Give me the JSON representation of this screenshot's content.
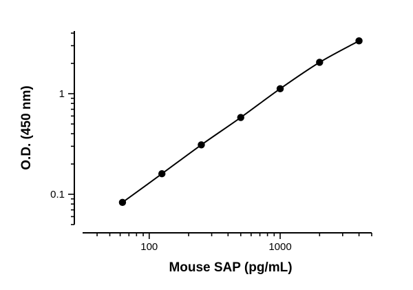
{
  "chart_data": {
    "type": "scatter",
    "xlabel": "Mouse SAP (pg/mL)",
    "ylabel": "O.D. (450 nm)",
    "x_scale": "log",
    "y_scale": "log",
    "xlim": [
      31,
      5000
    ],
    "ylim": [
      0.05,
      4.2
    ],
    "x_major_ticks": [
      100,
      1000
    ],
    "x_tick_labels": [
      "100",
      "1000"
    ],
    "y_major_ticks": [
      0.1,
      1
    ],
    "y_tick_labels": [
      "0.1",
      "1"
    ],
    "grid": false,
    "legend": "none",
    "series": [
      {
        "x": [
          62.5,
          125,
          250,
          500,
          1000,
          2000,
          4000
        ],
        "y": [
          0.083,
          0.16,
          0.31,
          0.58,
          1.12,
          2.05,
          3.35
        ],
        "fit_line": true
      }
    ]
  }
}
